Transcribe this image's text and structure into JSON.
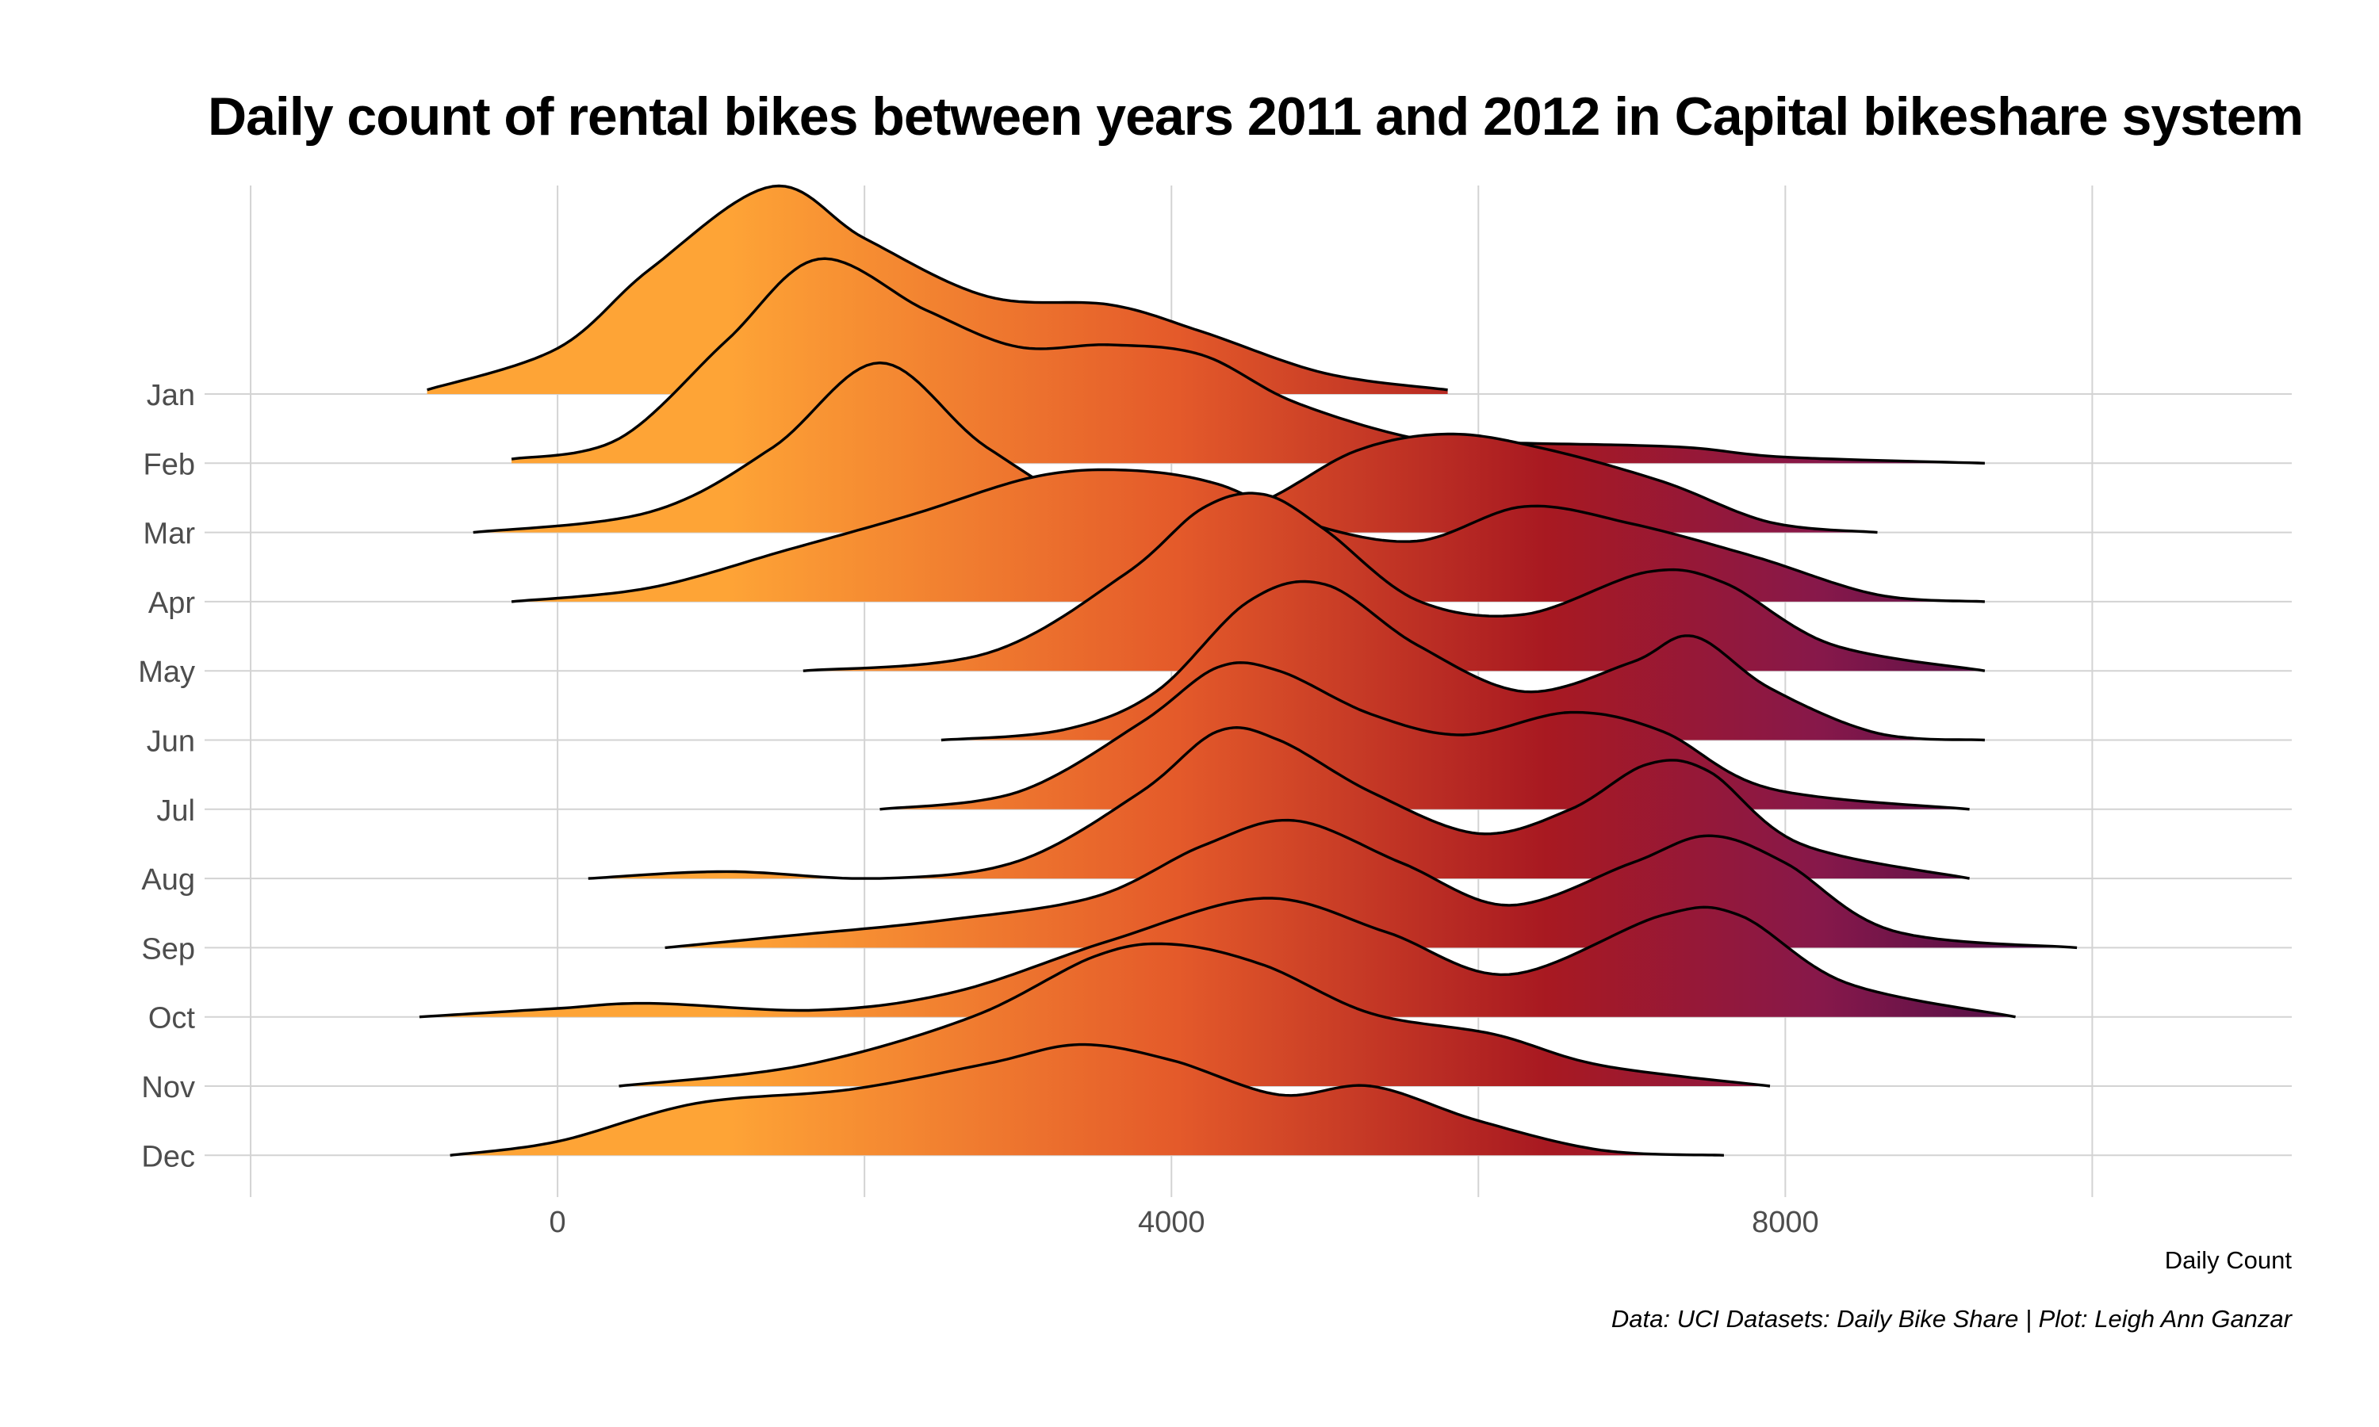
{
  "chart_data": {
    "type": "ridgeline",
    "title": "Daily count of rental bikes between years 2011 and 2012 in Capital bikeshare system",
    "xlabel": "Daily Count",
    "ylabel": "",
    "caption": "Data: UCI Datasets: Daily Bike Share | Plot: Leigh Ann Ganzar",
    "xlim": [
      -2300,
      11300
    ],
    "x_ticks": [
      0,
      4000,
      8000
    ],
    "x_tick_labels": [
      "0",
      "4000",
      "8000"
    ],
    "grid": true,
    "fill": "horizontal gradient by daily count (orange at low counts to dark purple at high counts)",
    "colors": {
      "low": "#fea436",
      "mid_low": "#e45a2a",
      "mid": "#a81921",
      "mid_high": "#87184a",
      "high": "#3e0d47",
      "outline": "#000000",
      "grid": "#d3d3d3"
    },
    "categories": [
      "Jan",
      "Feb",
      "Mar",
      "Apr",
      "May",
      "Jun",
      "Jul",
      "Aug",
      "Sep",
      "Oct",
      "Nov",
      "Dec"
    ],
    "series": [
      {
        "name": "Jan",
        "range": [
          -850,
          5800
        ],
        "peak_height": 3.0,
        "points": [
          [
            -850,
            0.02
          ],
          [
            0,
            0.22
          ],
          [
            600,
            0.6
          ],
          [
            1400,
            1.0
          ],
          [
            2000,
            0.75
          ],
          [
            2800,
            0.47
          ],
          [
            3600,
            0.43
          ],
          [
            4200,
            0.3
          ],
          [
            5000,
            0.1
          ],
          [
            5800,
            0.02
          ]
        ]
      },
      {
        "name": "Feb",
        "range": [
          -300,
          9300
        ],
        "peak_height": 2.95,
        "points": [
          [
            -300,
            0.02
          ],
          [
            400,
            0.12
          ],
          [
            1100,
            0.6
          ],
          [
            1700,
            1.0
          ],
          [
            2400,
            0.75
          ],
          [
            3000,
            0.57
          ],
          [
            3600,
            0.58
          ],
          [
            4200,
            0.53
          ],
          [
            4800,
            0.3
          ],
          [
            5600,
            0.12
          ],
          [
            6200,
            0.1
          ],
          [
            7300,
            0.08
          ],
          [
            8000,
            0.03
          ],
          [
            9300,
            0.0
          ]
        ]
      },
      {
        "name": "Mar",
        "range": [
          -550,
          8600
        ],
        "peak_height": 2.45,
        "points": [
          [
            -550,
            0.0
          ],
          [
            600,
            0.12
          ],
          [
            1400,
            0.5
          ],
          [
            2100,
            1.0
          ],
          [
            2800,
            0.5
          ],
          [
            3700,
            0.06
          ],
          [
            4500,
            0.15
          ],
          [
            5200,
            0.48
          ],
          [
            5800,
            0.58
          ],
          [
            6400,
            0.5
          ],
          [
            7200,
            0.3
          ],
          [
            7900,
            0.06
          ],
          [
            8600,
            0.0
          ]
        ]
      },
      {
        "name": "Apr",
        "range": [
          -300,
          9300
        ],
        "peak_height": 2.5,
        "points": [
          [
            -300,
            0.0
          ],
          [
            600,
            0.08
          ],
          [
            1500,
            0.3
          ],
          [
            2300,
            0.5
          ],
          [
            3100,
            0.72
          ],
          [
            3700,
            0.76
          ],
          [
            4300,
            0.68
          ],
          [
            4900,
            0.45
          ],
          [
            5600,
            0.35
          ],
          [
            6300,
            0.55
          ],
          [
            7000,
            0.45
          ],
          [
            7800,
            0.26
          ],
          [
            8600,
            0.04
          ],
          [
            9300,
            0.0
          ]
        ]
      },
      {
        "name": "May",
        "range": [
          1600,
          9300
        ],
        "peak_height": 2.55,
        "points": [
          [
            1600,
            0.0
          ],
          [
            2800,
            0.1
          ],
          [
            3700,
            0.55
          ],
          [
            4200,
            0.92
          ],
          [
            4600,
            1.0
          ],
          [
            5000,
            0.8
          ],
          [
            5600,
            0.4
          ],
          [
            6300,
            0.32
          ],
          [
            7100,
            0.56
          ],
          [
            7600,
            0.5
          ],
          [
            8300,
            0.15
          ],
          [
            9300,
            0.0
          ]
        ]
      },
      {
        "name": "Jun",
        "range": [
          2500,
          9300
        ],
        "peak_height": 2.5,
        "points": [
          [
            2500,
            0.0
          ],
          [
            3300,
            0.06
          ],
          [
            3900,
            0.28
          ],
          [
            4500,
            0.8
          ],
          [
            5000,
            0.9
          ],
          [
            5600,
            0.55
          ],
          [
            6300,
            0.28
          ],
          [
            7000,
            0.45
          ],
          [
            7400,
            0.6
          ],
          [
            7900,
            0.3
          ],
          [
            8600,
            0.04
          ],
          [
            9300,
            0.0
          ]
        ]
      },
      {
        "name": "Jul",
        "range": [
          2100,
          9200
        ],
        "peak_height": 2.5,
        "points": [
          [
            2100,
            0.0
          ],
          [
            3000,
            0.1
          ],
          [
            3800,
            0.5
          ],
          [
            4300,
            0.82
          ],
          [
            4700,
            0.8
          ],
          [
            5300,
            0.55
          ],
          [
            5900,
            0.43
          ],
          [
            6600,
            0.56
          ],
          [
            7200,
            0.45
          ],
          [
            7900,
            0.12
          ],
          [
            9200,
            0.0
          ]
        ]
      },
      {
        "name": "Aug",
        "range": [
          200,
          9200
        ],
        "peak_height": 2.5,
        "points": [
          [
            200,
            0.0
          ],
          [
            1100,
            0.04
          ],
          [
            2100,
            0.0
          ],
          [
            3000,
            0.1
          ],
          [
            3800,
            0.5
          ],
          [
            4300,
            0.85
          ],
          [
            4700,
            0.8
          ],
          [
            5300,
            0.5
          ],
          [
            6000,
            0.26
          ],
          [
            6600,
            0.4
          ],
          [
            7100,
            0.66
          ],
          [
            7500,
            0.62
          ],
          [
            8100,
            0.2
          ],
          [
            9200,
            0.0
          ]
        ]
      },
      {
        "name": "Sep",
        "range": [
          700,
          9900
        ],
        "peak_height": 2.45,
        "points": [
          [
            700,
            0.0
          ],
          [
            1500,
            0.07
          ],
          [
            2500,
            0.16
          ],
          [
            3500,
            0.3
          ],
          [
            4200,
            0.6
          ],
          [
            4800,
            0.75
          ],
          [
            5500,
            0.5
          ],
          [
            6200,
            0.25
          ],
          [
            7000,
            0.5
          ],
          [
            7500,
            0.66
          ],
          [
            8000,
            0.5
          ],
          [
            8700,
            0.1
          ],
          [
            9900,
            0.0
          ]
        ]
      },
      {
        "name": "Oct",
        "range": [
          -900,
          9500
        ],
        "peak_height": 2.45,
        "points": [
          [
            -900,
            0.0
          ],
          [
            0,
            0.05
          ],
          [
            600,
            0.08
          ],
          [
            1700,
            0.04
          ],
          [
            2600,
            0.15
          ],
          [
            3600,
            0.45
          ],
          [
            4600,
            0.7
          ],
          [
            5400,
            0.5
          ],
          [
            6200,
            0.25
          ],
          [
            7200,
            0.6
          ],
          [
            7700,
            0.6
          ],
          [
            8400,
            0.2
          ],
          [
            9500,
            0.0
          ]
        ]
      },
      {
        "name": "Nov",
        "range": [
          400,
          7900
        ],
        "peak_height": 2.5,
        "points": [
          [
            400,
            0.0
          ],
          [
            1600,
            0.12
          ],
          [
            2700,
            0.4
          ],
          [
            3500,
            0.75
          ],
          [
            4000,
            0.82
          ],
          [
            4600,
            0.7
          ],
          [
            5300,
            0.42
          ],
          [
            6100,
            0.3
          ],
          [
            6800,
            0.12
          ],
          [
            7900,
            0.0
          ]
        ]
      },
      {
        "name": "Dec",
        "range": [
          -700,
          7600
        ],
        "peak_height": 2.5,
        "points": [
          [
            -700,
            0.0
          ],
          [
            0,
            0.08
          ],
          [
            900,
            0.3
          ],
          [
            1900,
            0.38
          ],
          [
            2800,
            0.53
          ],
          [
            3400,
            0.64
          ],
          [
            4000,
            0.55
          ],
          [
            4700,
            0.35
          ],
          [
            5300,
            0.4
          ],
          [
            6000,
            0.2
          ],
          [
            6800,
            0.03
          ],
          [
            7600,
            0.0
          ]
        ]
      }
    ]
  }
}
